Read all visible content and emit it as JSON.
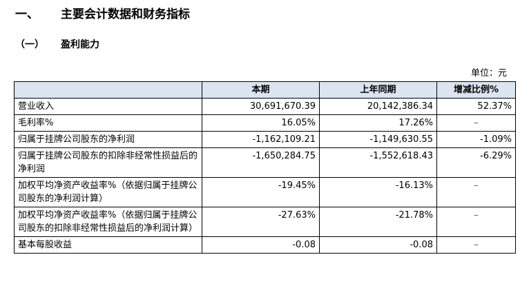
{
  "section": {
    "number": "一、",
    "title": "主要会计数据和财务指标"
  },
  "subsection": {
    "number": "（一）",
    "title": "盈利能力"
  },
  "unit": "单位：元",
  "table": {
    "headers": [
      "",
      "本期",
      "上年同期",
      "增减比例%"
    ],
    "rows": [
      {
        "item": "营业收入",
        "current": "30,691,670.39",
        "prior": "20,142,386.34",
        "change": "52.37%"
      },
      {
        "item": "毛利率%",
        "current": "16.05%",
        "prior": "17.26%",
        "change": "–"
      },
      {
        "item": "归属于挂牌公司股东的净利润",
        "current": "-1,162,109.21",
        "prior": "-1,149,630.55",
        "change": "-1.09%"
      },
      {
        "item": "归属于挂牌公司股东的扣除非经常性损益后的净利润",
        "current": "-1,650,284.75",
        "prior": "-1,552,618.43",
        "change": "-6.29%"
      },
      {
        "item": "加权平均净资产收益率%（依据归属于挂牌公司股东的净利润计算）",
        "current": "-19.45%",
        "prior": "-16.13%",
        "change": "–"
      },
      {
        "item": "加权平均净资产收益率%（依据归属于挂牌公司股东的扣除非经常性损益后的净利润计算）",
        "current": "-27.63%",
        "prior": "-21.78%",
        "change": "–"
      },
      {
        "item": "基本每股收益",
        "current": "-0.08",
        "prior": "-0.08",
        "change": "–"
      }
    ]
  }
}
